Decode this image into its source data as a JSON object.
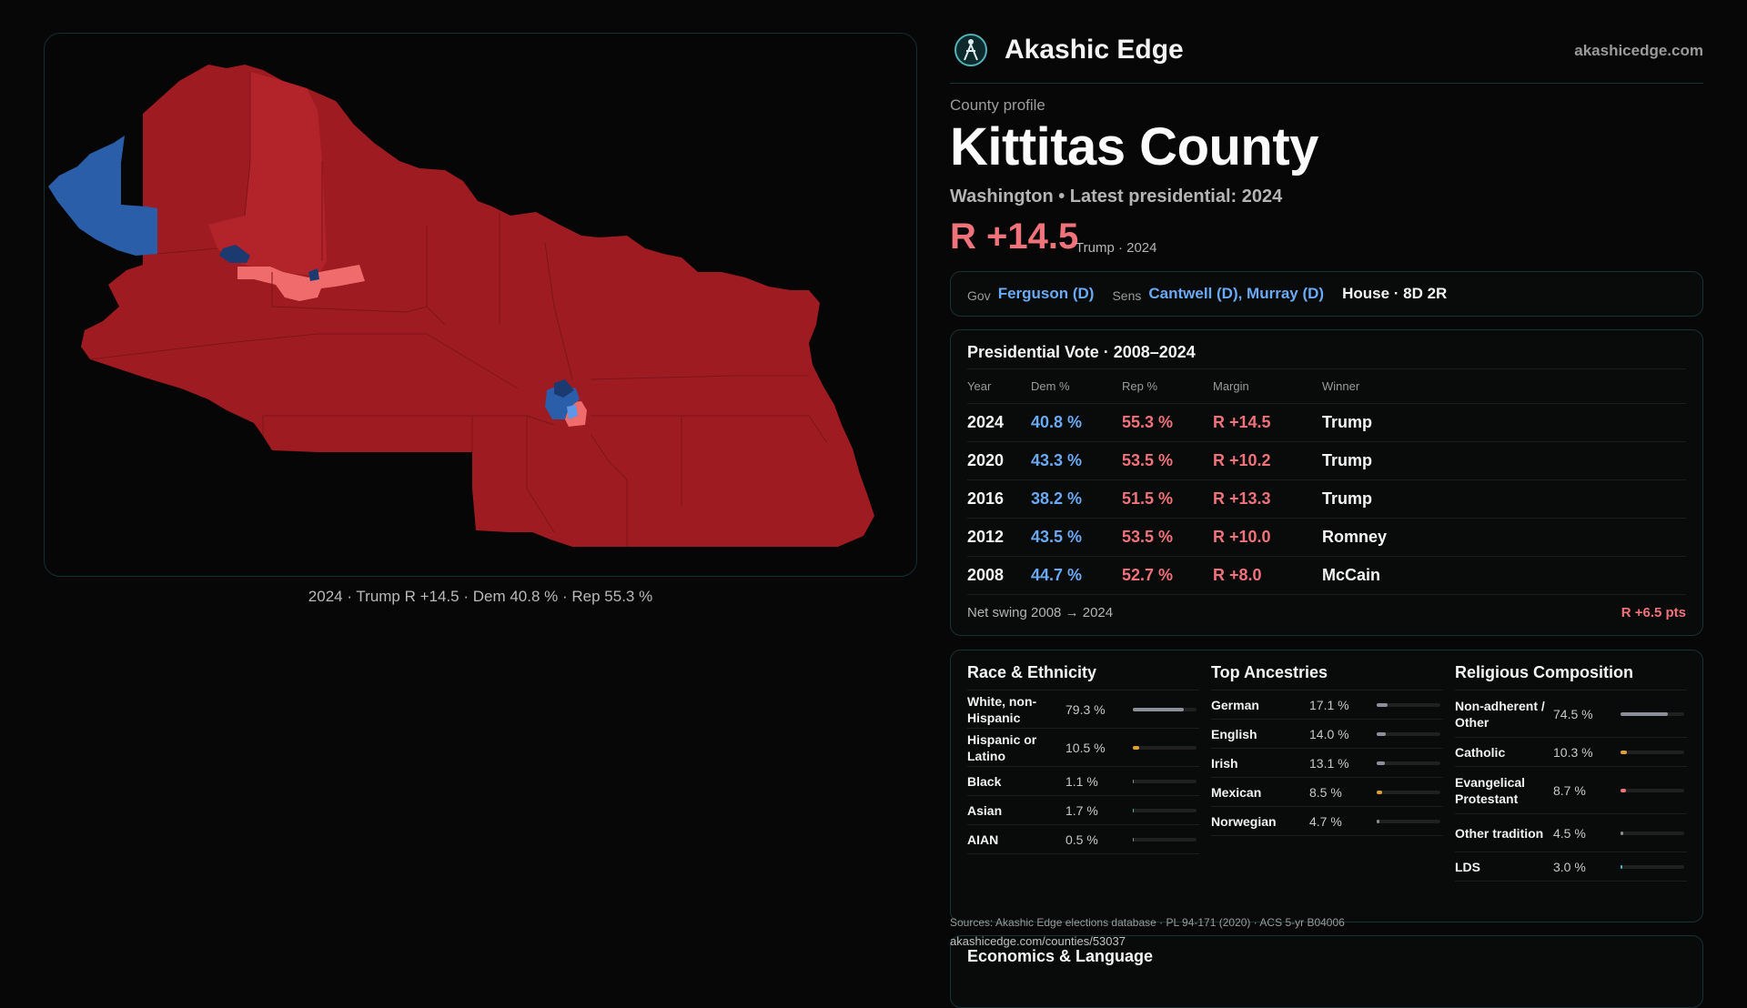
{
  "map": {
    "caption": "2024 · Trump R +14.5 · Dem 40.8 % · Rep 55.3 %",
    "colors": {
      "strong_rep": "#9e1c21",
      "rep": "#b2242a",
      "lean_rep": "#f06b6b",
      "dem": "#2a5ea8",
      "dark_dem": "#1a3a70",
      "light_dem": "#5f96e6"
    }
  },
  "header": {
    "brand": "Akashic Edge",
    "domain": "akashicedge.com",
    "logo_icon": "compass-person-icon"
  },
  "profile": {
    "eyebrow": "County profile",
    "title": "Kittitas County",
    "subtitle": "Washington • Latest presidential: 2024",
    "margin": "R +14.5",
    "margin_note": "Trump · 2024"
  },
  "officials": {
    "gov_label": "Gov",
    "gov": "Ferguson (D)",
    "sens_label": "Sens",
    "sens": "Cantwell (D), Murray (D)",
    "house": "House · 8D 2R"
  },
  "presidential": {
    "title": "Presidential Vote · 2008–2024",
    "headers": [
      "Year",
      "Dem %",
      "Rep %",
      "Margin",
      "Winner"
    ],
    "rows": [
      {
        "year": "2024",
        "dem": "40.8 %",
        "rep": "55.3 %",
        "margin": "R +14.5",
        "winner": "Trump"
      },
      {
        "year": "2020",
        "dem": "43.3 %",
        "rep": "53.5 %",
        "margin": "R +10.2",
        "winner": "Trump"
      },
      {
        "year": "2016",
        "dem": "38.2 %",
        "rep": "51.5 %",
        "margin": "R +13.3",
        "winner": "Trump"
      },
      {
        "year": "2012",
        "dem": "43.5 %",
        "rep": "53.5 %",
        "margin": "R +10.0",
        "winner": "Romney"
      },
      {
        "year": "2008",
        "dem": "44.7 %",
        "rep": "52.7 %",
        "margin": "R +8.0",
        "winner": "McCain"
      }
    ],
    "swing_label": "Net swing 2008 → 2024",
    "swing_value": "R +6.5 pts"
  },
  "demographics": {
    "race": {
      "title": "Race & Ethnicity",
      "items": [
        {
          "label": "White, non-Hispanic",
          "value": "79.3 %",
          "pct": 79.3,
          "color": "#8a8f99"
        },
        {
          "label": "Hispanic or Latino",
          "value": "10.5 %",
          "pct": 10.5,
          "color": "#e0a030"
        },
        {
          "label": "Black",
          "value": "1.1 %",
          "pct": 1.1,
          "color": "#888888"
        },
        {
          "label": "Asian",
          "value": "1.7 %",
          "pct": 1.7,
          "color": "#3fbf8f"
        },
        {
          "label": "AIAN",
          "value": "0.5 %",
          "pct": 0.5,
          "color": "#888888"
        }
      ]
    },
    "ancestry": {
      "title": "Top Ancestries",
      "items": [
        {
          "label": "German",
          "value": "17.1 %",
          "pct": 17.1,
          "color": "#8a8f99"
        },
        {
          "label": "English",
          "value": "14.0 %",
          "pct": 14.0,
          "color": "#8a8f99"
        },
        {
          "label": "Irish",
          "value": "13.1 %",
          "pct": 13.1,
          "color": "#8a8f99"
        },
        {
          "label": "Mexican",
          "value": "8.5 %",
          "pct": 8.5,
          "color": "#e0a030"
        },
        {
          "label": "Norwegian",
          "value": "4.7 %",
          "pct": 4.7,
          "color": "#8a8f99"
        }
      ]
    },
    "religion": {
      "title": "Religious Composition",
      "items": [
        {
          "label": "Non-adherent / Other",
          "value": "74.5 %",
          "pct": 74.5,
          "color": "#8a8f99"
        },
        {
          "label": "Catholic",
          "value": "10.3 %",
          "pct": 10.3,
          "color": "#e0a030"
        },
        {
          "label": "Evangelical Protestant",
          "value": "8.7 %",
          "pct": 8.7,
          "color": "#f0727a"
        },
        {
          "label": "Other tradition",
          "value": "4.5 %",
          "pct": 4.5,
          "color": "#8a8f99"
        },
        {
          "label": "LDS",
          "value": "3.0 %",
          "pct": 3.0,
          "color": "#3fbfd0"
        }
      ]
    }
  },
  "sources": {
    "line1": "Sources: Akashic Edge elections database · PL 94-171 (2020) · ACS 5-yr B04006",
    "line2": "akashicedge.com/counties/53037"
  },
  "economics": {
    "title": "Economics & Language"
  }
}
